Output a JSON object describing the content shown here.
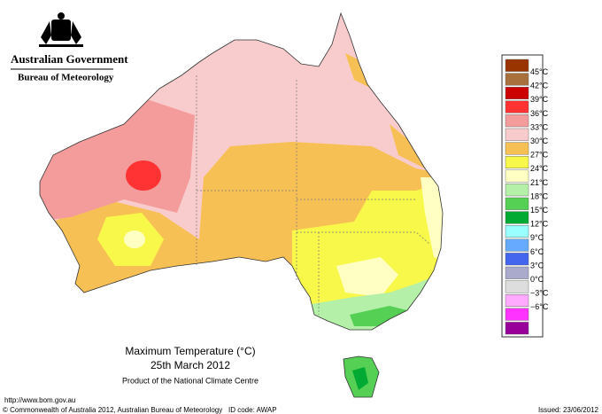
{
  "header": {
    "government": "Australian Government",
    "bureau": "Bureau of Meteorology"
  },
  "legend": {
    "labels": [
      "45°C",
      "42°C",
      "39°C",
      "36°C",
      "33°C",
      "30°C",
      "27°C",
      "24°C",
      "21°C",
      "18°C",
      "15°C",
      "12°C",
      "9°C",
      "6°C",
      "3°C",
      "0°C",
      "−3°C",
      "−6°C"
    ],
    "colors": [
      "#993300",
      "#a8703c",
      "#cc0000",
      "#ff3333",
      "#f49c9c",
      "#f8cccc",
      "#f7c055",
      "#f8f84a",
      "#ffffc4",
      "#b4f0a8",
      "#55d055",
      "#00aa33",
      "#99ffff",
      "#66aaff",
      "#4466ee",
      "#aaaacc",
      "#dddddd",
      "#ffaaff",
      "#ff33ff",
      "#990099"
    ]
  },
  "title": {
    "line1": "Maximum Temperature (°C)",
    "line2": "25th March 2012",
    "line3": "Product of the National Climate Centre"
  },
  "footer": {
    "url": "http://www.bom.gov.au",
    "copyright": "© Commonwealth of Australia 2012, Australian Bureau of Meteorology",
    "id": "ID code: AWAP",
    "issued": "Issued: 23/06/2012"
  }
}
